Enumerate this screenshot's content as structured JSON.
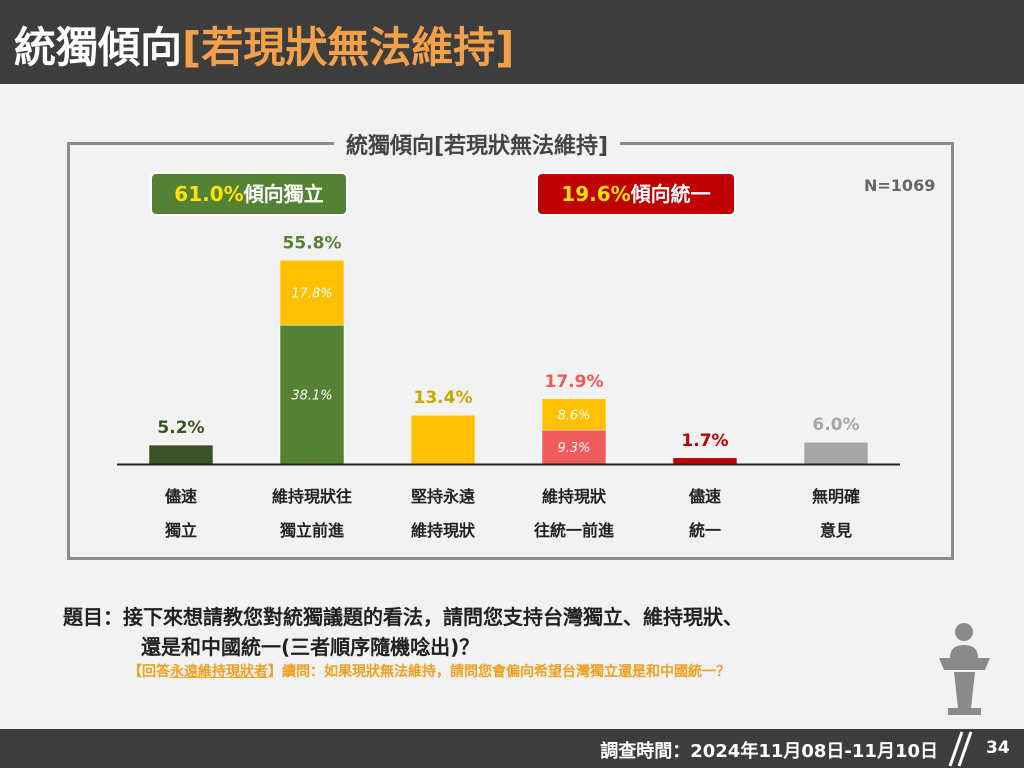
{
  "header": {
    "title_main": "統獨傾向",
    "title_bracket": "[若現狀無法維持]"
  },
  "chart_title": "統獨傾向[若現狀無法維持]",
  "sample_label": "N=1069",
  "badges": {
    "independence": {
      "value": "61.0%",
      "text": "傾向獨立",
      "color": "#548235"
    },
    "unification": {
      "value": "19.6%",
      "text": "傾向統一",
      "color": "#c00000"
    }
  },
  "chart_data": {
    "type": "bar",
    "stacked": true,
    "categories": [
      [
        "儘速",
        "獨立"
      ],
      [
        "維持現狀往",
        "獨立前進"
      ],
      [
        "堅持永遠",
        "維持現狀"
      ],
      [
        "維持現狀",
        "往統一前進"
      ],
      [
        "儘速",
        "統一"
      ],
      [
        "無明確",
        "意見"
      ]
    ],
    "bars": [
      {
        "total": 5.2,
        "total_label": "5.2%",
        "total_color": "#3b5323",
        "segments": [
          {
            "value": 5.2,
            "color": "#3b5323"
          }
        ]
      },
      {
        "total": 55.8,
        "total_label": "55.8%",
        "total_color": "#548235",
        "segments": [
          {
            "value": 38.1,
            "label": "38.1%",
            "color": "#548235"
          },
          {
            "value": 17.8,
            "label": "17.8%",
            "color": "#ffc000"
          }
        ]
      },
      {
        "total": 13.4,
        "total_label": "13.4%",
        "total_color": "#c9a800",
        "segments": [
          {
            "value": 13.4,
            "color": "#ffc000"
          }
        ]
      },
      {
        "total": 17.9,
        "total_label": "17.9%",
        "total_color": "#f05a5a",
        "segments": [
          {
            "value": 9.3,
            "label": "9.3%",
            "color": "#f05a5a"
          },
          {
            "value": 8.6,
            "label": "8.6%",
            "color": "#ffc000"
          }
        ]
      },
      {
        "total": 1.7,
        "total_label": "1.7%",
        "total_color": "#c00000",
        "segments": [
          {
            "value": 1.7,
            "color": "#c00000"
          }
        ]
      },
      {
        "total": 6.0,
        "total_label": "6.0%",
        "total_color": "#a6a6a6",
        "segments": [
          {
            "value": 6.0,
            "color": "#a6a6a6"
          }
        ]
      }
    ],
    "ylim": [
      0,
      60
    ],
    "grid": false,
    "legend": "none"
  },
  "question": {
    "line1": "題目：接下來想請教您對統獨議題的看法，請問您支持台灣獨立、維持現狀、",
    "line2": "還是和中國統一(三者順序隨機唸出)？"
  },
  "followup": {
    "prefix": "【回答",
    "underlined": "永遠維持現狀者",
    "suffix": "】續問：如果現狀無法維持，請問您會偏向希望台灣獨立還是和中國統一？"
  },
  "footer": {
    "date": "調查時間：2024年11月08日-11月10日",
    "page": "34"
  }
}
